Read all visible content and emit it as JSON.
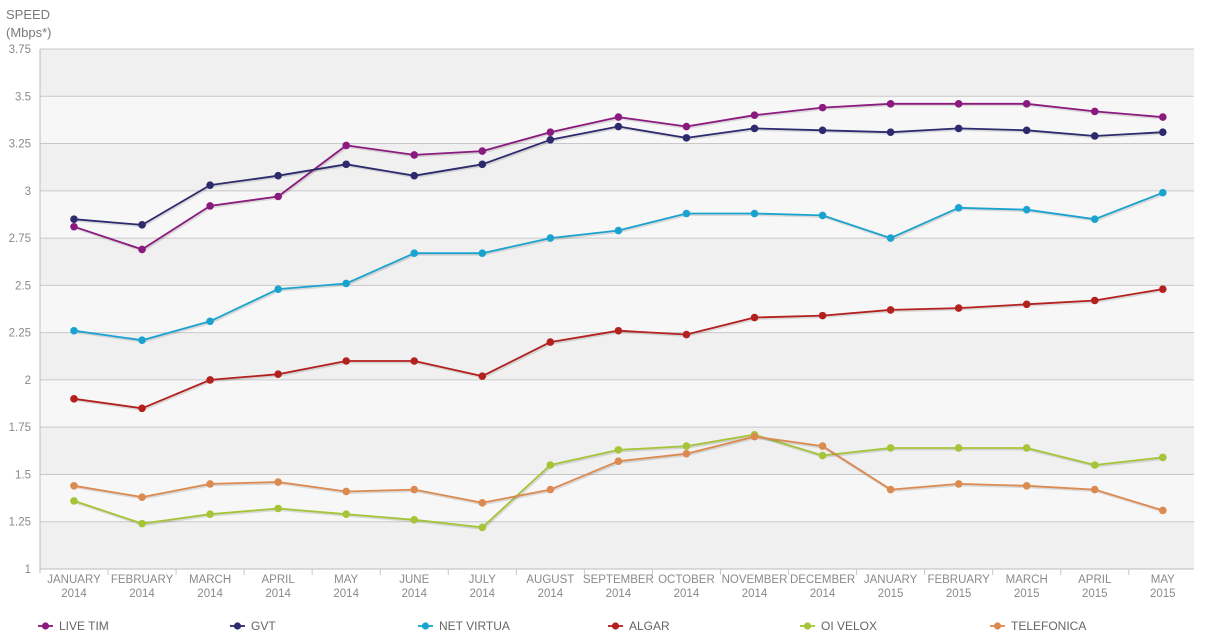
{
  "chart_data": {
    "type": "line",
    "ylabel_line1": "SPEED",
    "ylabel_line2": "(Mbps*)",
    "ylim": [
      1,
      3.75
    ],
    "yticks": [
      "1",
      "1.25",
      "1.5",
      "1.75",
      "2",
      "2.25",
      "2.5",
      "2.75",
      "3",
      "3.25",
      "3.5",
      "3.75"
    ],
    "grid": true,
    "legend_position": "bottom",
    "categories": [
      [
        "JANUARY",
        "2014"
      ],
      [
        "FEBRUARY",
        "2014"
      ],
      [
        "MARCH",
        "2014"
      ],
      [
        "APRIL",
        "2014"
      ],
      [
        "MAY",
        "2014"
      ],
      [
        "JUNE",
        "2014"
      ],
      [
        "JULY",
        "2014"
      ],
      [
        "AUGUST",
        "2014"
      ],
      [
        "SEPTEMBER",
        "2014"
      ],
      [
        "OCTOBER",
        "2014"
      ],
      [
        "NOVEMBER",
        "2014"
      ],
      [
        "DECEMBER",
        "2014"
      ],
      [
        "JANUARY",
        "2015"
      ],
      [
        "FEBRUARY",
        "2015"
      ],
      [
        "MARCH",
        "2015"
      ],
      [
        "APRIL",
        "2015"
      ],
      [
        "MAY",
        "2015"
      ]
    ],
    "series": [
      {
        "name": "LIVE TIM",
        "color": "#8b1a7e",
        "values": [
          2.81,
          2.69,
          2.92,
          2.97,
          3.24,
          3.19,
          3.21,
          3.31,
          3.39,
          3.34,
          3.4,
          3.44,
          3.46,
          3.46,
          3.46,
          3.42,
          3.39
        ]
      },
      {
        "name": "GVT",
        "color": "#2e2a6e",
        "values": [
          2.85,
          2.82,
          3.03,
          3.08,
          3.14,
          3.08,
          3.14,
          3.27,
          3.34,
          3.28,
          3.33,
          3.32,
          3.31,
          3.33,
          3.32,
          3.29,
          3.31
        ]
      },
      {
        "name": "NET VIRTUA",
        "color": "#1ba3cf",
        "values": [
          2.26,
          2.21,
          2.31,
          2.48,
          2.51,
          2.67,
          2.67,
          2.75,
          2.79,
          2.88,
          2.88,
          2.87,
          2.75,
          2.91,
          2.9,
          2.85,
          2.99
        ]
      },
      {
        "name": "ALGAR",
        "color": "#b3201e",
        "values": [
          1.9,
          1.85,
          2.0,
          2.03,
          2.1,
          2.1,
          2.02,
          2.2,
          2.26,
          2.24,
          2.33,
          2.34,
          2.37,
          2.38,
          2.4,
          2.42,
          2.48
        ]
      },
      {
        "name": "OI VELOX",
        "color": "#a6c437",
        "values": [
          1.36,
          1.24,
          1.29,
          1.32,
          1.29,
          1.26,
          1.22,
          1.55,
          1.63,
          1.65,
          1.71,
          1.6,
          1.64,
          1.64,
          1.64,
          1.55,
          1.59
        ]
      },
      {
        "name": "TELEFONICA",
        "color": "#dc8a4f",
        "values": [
          1.44,
          1.38,
          1.45,
          1.46,
          1.41,
          1.42,
          1.35,
          1.42,
          1.57,
          1.61,
          1.7,
          1.65,
          1.42,
          1.45,
          1.44,
          1.42,
          1.31
        ]
      }
    ]
  }
}
